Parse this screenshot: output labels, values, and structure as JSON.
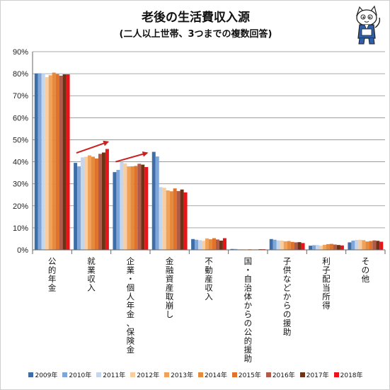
{
  "chart_data": {
    "type": "bar",
    "title": "老後の生活費収入源",
    "subtitle": "(二人以上世帯、3つまでの複数回答)",
    "categories": [
      "公的年金",
      "就業収入",
      "企業・個人年金、保険金",
      "金融資産取崩し",
      "不動産収入",
      "国・自治体からの公的援助",
      "子供などからの援助",
      "利子配当所得",
      "その他"
    ],
    "ylim": [
      0,
      90
    ],
    "yticks": [
      0,
      10,
      20,
      30,
      40,
      50,
      60,
      70,
      80,
      90
    ],
    "ytick_labels": [
      "0%",
      "10%",
      "20%",
      "30%",
      "40%",
      "50%",
      "60%",
      "70%",
      "80%",
      "90%"
    ],
    "grid": true,
    "legend_position": "bottom",
    "series": [
      {
        "name": "2009年",
        "color": "#3f6da8",
        "values": [
          80.1,
          39.5,
          35.3,
          44.5,
          4.9,
          0.4,
          4.9,
          1.9,
          3.4
        ]
      },
      {
        "name": "2010年",
        "color": "#7ea6d9",
        "values": [
          80.2,
          37.9,
          36.3,
          42.4,
          4.6,
          0.4,
          4.6,
          2.1,
          4.2
        ]
      },
      {
        "name": "2011年",
        "color": "#c5d6ec",
        "values": [
          80.0,
          42.0,
          39.9,
          28.5,
          4.4,
          0.3,
          4.3,
          2.2,
          4.5
        ]
      },
      {
        "name": "2012年",
        "color": "#f8cda0",
        "values": [
          78.4,
          42.3,
          39.3,
          28.2,
          4.1,
          0.3,
          4.2,
          1.9,
          4.6
        ]
      },
      {
        "name": "2013年",
        "color": "#f0a25a",
        "values": [
          79.3,
          42.9,
          37.9,
          27.0,
          5.2,
          0.2,
          3.9,
          2.3,
          4.4
        ]
      },
      {
        "name": "2014年",
        "color": "#e68a3c",
        "values": [
          80.5,
          42.3,
          37.9,
          26.6,
          4.8,
          0.3,
          4.0,
          2.6,
          3.8
        ]
      },
      {
        "name": "2015年",
        "color": "#e0722a",
        "values": [
          79.8,
          41.5,
          38.1,
          27.9,
          5.3,
          0.2,
          3.6,
          2.7,
          4.0
        ]
      },
      {
        "name": "2016年",
        "color": "#b05a4a",
        "values": [
          79.1,
          43.6,
          39.1,
          26.7,
          4.7,
          0.2,
          3.4,
          2.4,
          4.3
        ]
      },
      {
        "name": "2017年",
        "color": "#6e3316",
        "values": [
          79.7,
          44.2,
          38.7,
          27.4,
          4.2,
          0.3,
          3.5,
          2.2,
          4.1
        ]
      },
      {
        "name": "2018年",
        "color": "#e8141a",
        "values": [
          79.7,
          45.8,
          37.6,
          26.1,
          5.3,
          0.3,
          3.1,
          2.0,
          3.7
        ]
      }
    ],
    "annotations": [
      {
        "type": "arrow",
        "color": "#cc2020",
        "from": {
          "category": "就業収入",
          "value": 44
        },
        "to": {
          "category": "就業収入",
          "value": 49
        }
      },
      {
        "type": "arrow",
        "color": "#cc2020",
        "from": {
          "category": "企業・個人年金、保険金",
          "value": 40
        },
        "to": {
          "category": "企業・個人年金、保険金",
          "value": 44
        }
      }
    ]
  },
  "mascot_icon": "cat-mascot-icon"
}
